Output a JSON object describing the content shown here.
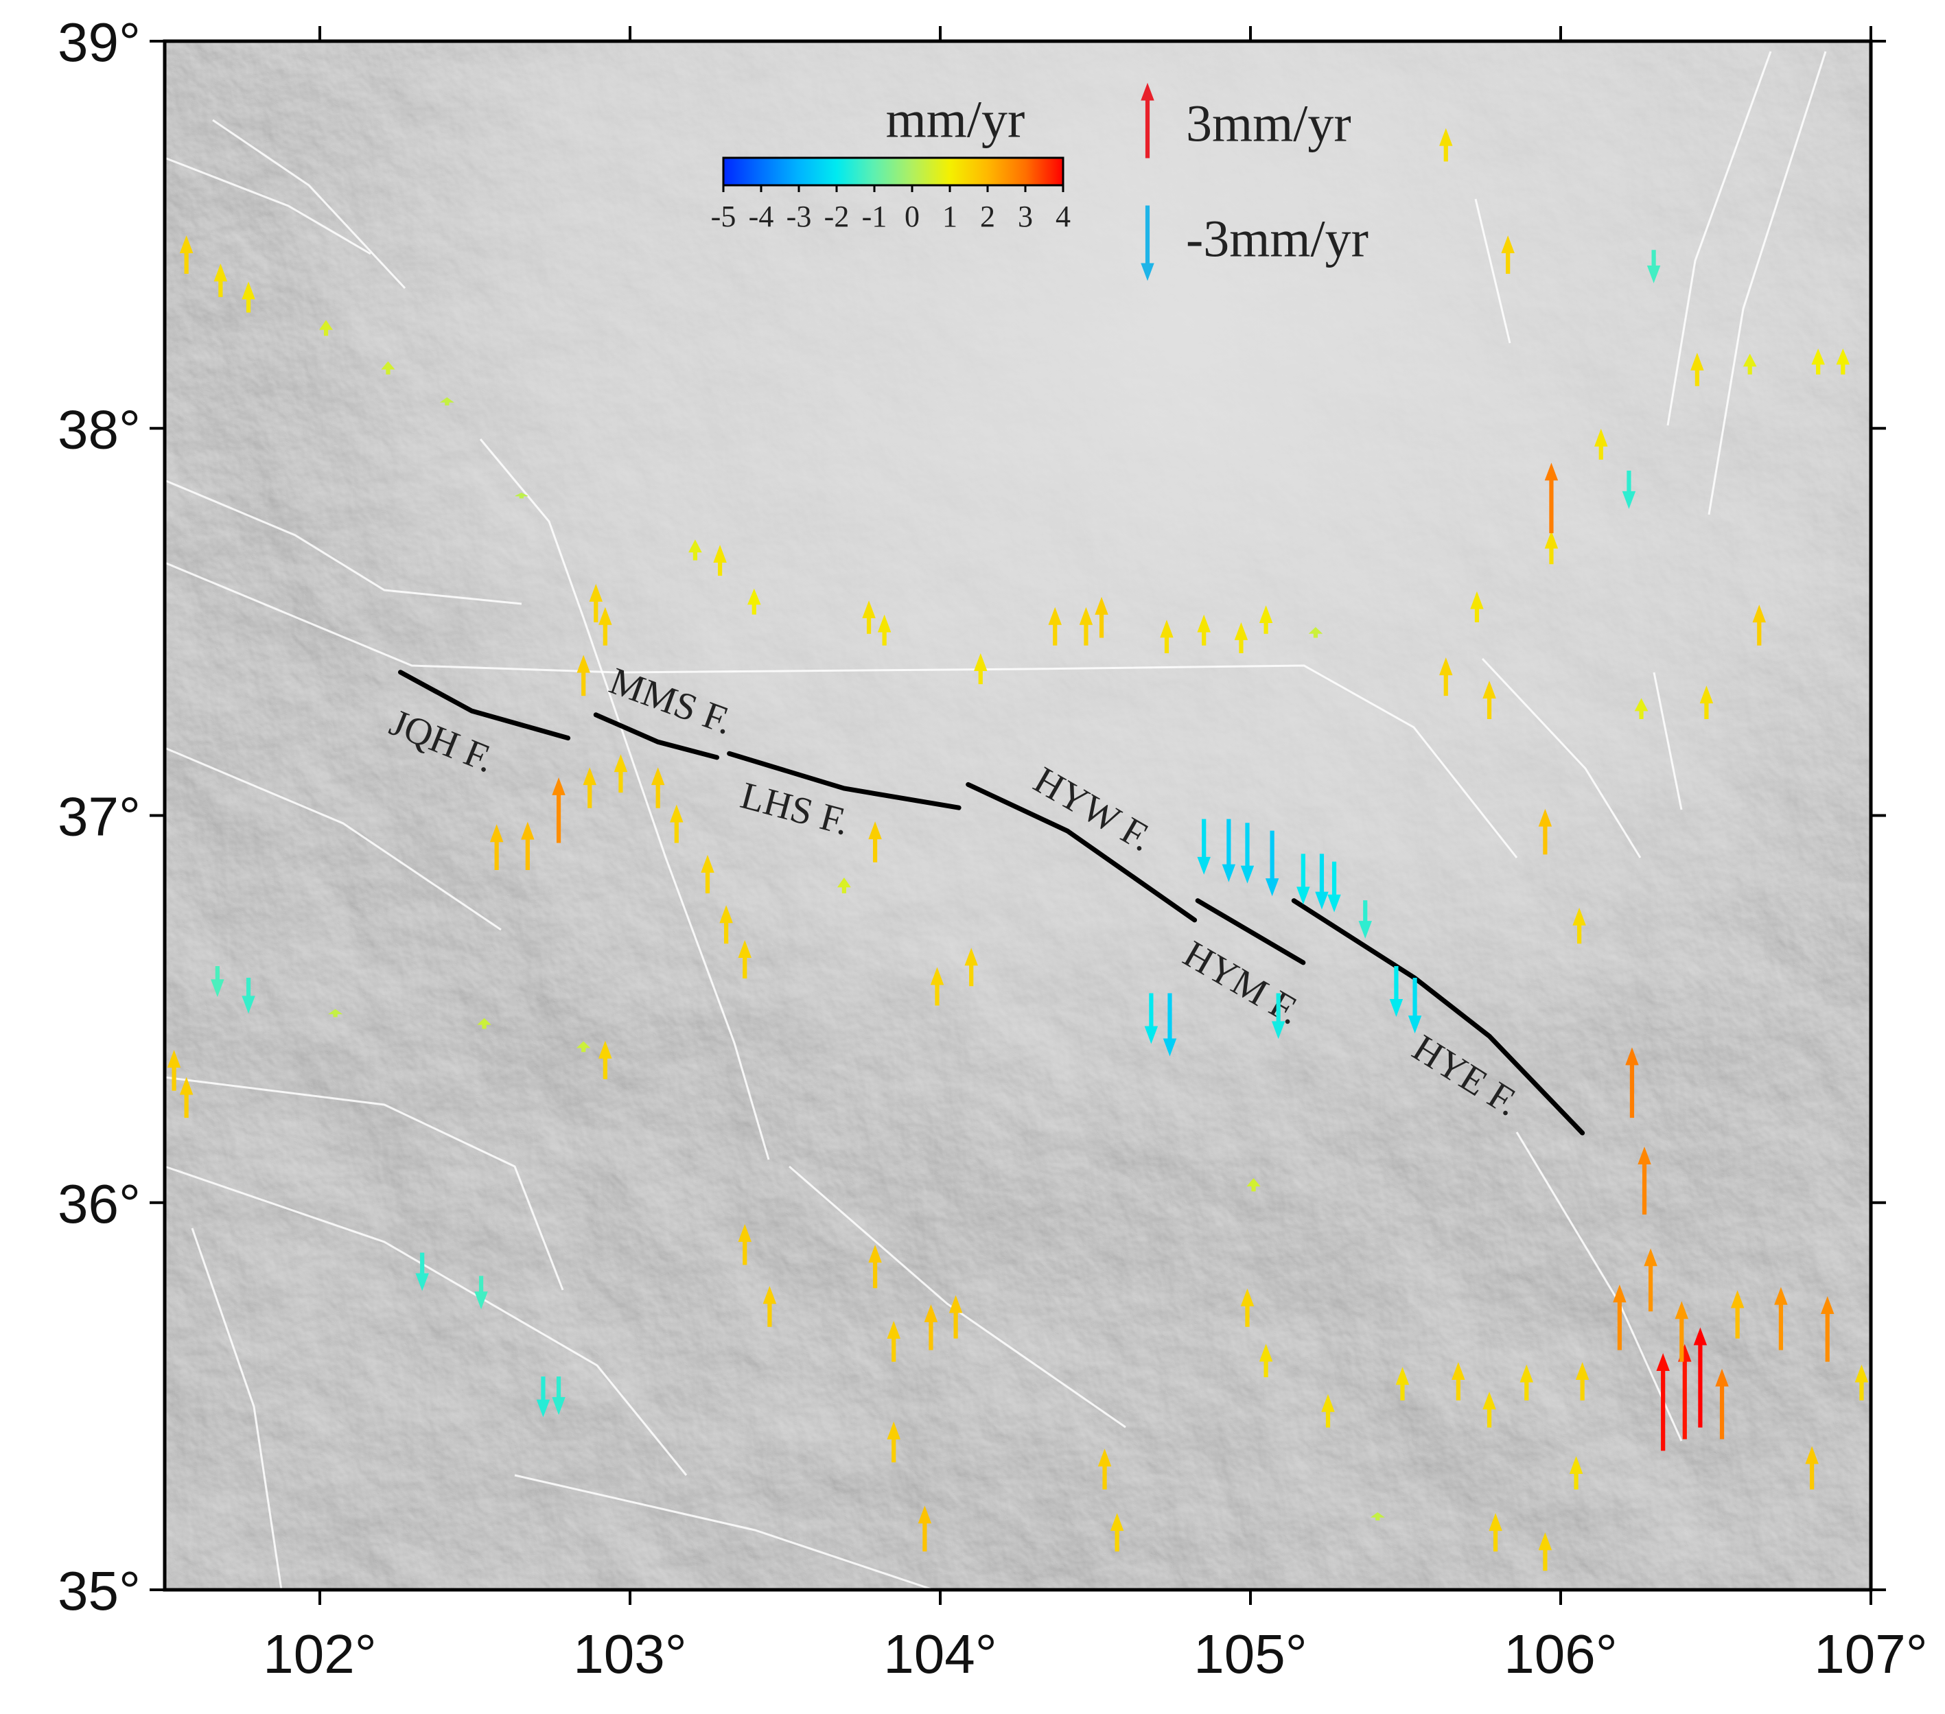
{
  "chart_data": {
    "type": "vector-map",
    "xlim": [
      101.5,
      107
    ],
    "ylim": [
      35,
      39
    ],
    "xticks": [
      {
        "value": 102,
        "label": "102°"
      },
      {
        "value": 103,
        "label": "103°"
      },
      {
        "value": 104,
        "label": "104°"
      },
      {
        "value": 105,
        "label": "105°"
      },
      {
        "value": 106,
        "label": "106°"
      },
      {
        "value": 107,
        "label": "107°"
      }
    ],
    "yticks": [
      {
        "value": 35,
        "label": "35°"
      },
      {
        "value": 36,
        "label": "36°"
      },
      {
        "value": 37,
        "label": "37°"
      },
      {
        "value": 38,
        "label": "38°"
      },
      {
        "value": 39,
        "label": "39°"
      }
    ],
    "colorbar": {
      "title": "mm/yr",
      "clim": [
        -5,
        4
      ],
      "ticks": [
        -5,
        -4,
        -3,
        -2,
        -1,
        0,
        1,
        2,
        3,
        4
      ],
      "colormap": [
        "#0028ff",
        "#0070ff",
        "#00b4ff",
        "#00eaf0",
        "#5ef0b0",
        "#b0f060",
        "#f4f000",
        "#ffb800",
        "#ff7000",
        "#ff0000"
      ]
    },
    "legend": [
      {
        "value": 3,
        "label": "3mm/yr",
        "color": "#e8202a"
      },
      {
        "value": -3,
        "label": "-3mm/yr",
        "color": "#1eb4e8"
      }
    ],
    "faults": [
      {
        "name": "JQH F.",
        "lon": [
          102.26,
          102.49,
          102.8
        ],
        "lat": [
          37.37,
          37.27,
          37.2
        ]
      },
      {
        "name": "MMS F.",
        "lon": [
          102.89,
          103.09,
          103.28
        ],
        "lat": [
          37.26,
          37.19,
          37.15
        ]
      },
      {
        "name": "LHS F.",
        "lon": [
          103.32,
          103.69,
          104.06
        ],
        "lat": [
          37.16,
          37.07,
          37.02
        ]
      },
      {
        "name": "HYW F.",
        "lon": [
          104.09,
          104.41,
          104.82
        ],
        "lat": [
          37.08,
          36.96,
          36.73
        ]
      },
      {
        "name": "HYM F.",
        "lon": [
          104.83,
          105.17
        ],
        "lat": [
          36.78,
          36.62
        ]
      },
      {
        "name": "HYE F.",
        "lon": [
          105.14,
          105.53,
          105.77,
          106.07
        ],
        "lat": [
          36.78,
          36.58,
          36.43,
          36.18
        ]
      }
    ],
    "vectors": {
      "lon": [
        101.57,
        101.68,
        101.77,
        102.02,
        102.22,
        102.41,
        102.65,
        102.89,
        102.92,
        102.85,
        103.21,
        103.29,
        103.4,
        103.77,
        103.82,
        104.13,
        104.37,
        104.47,
        104.52,
        104.73,
        104.85,
        104.97,
        105.05,
        105.21,
        105.63,
        105.73,
        105.77,
        105.97,
        105.97,
        106.13,
        106.22,
        106.3,
        106.44,
        106.61,
        106.83,
        106.91,
        105.83,
        105.63,
        106.47,
        106.64,
        105.95,
        106.06,
        106.26,
        102.57,
        102.67,
        102.77,
        102.87,
        102.97,
        103.09,
        103.15,
        103.25,
        103.31,
        103.37,
        103.79,
        103.69,
        103.99,
        104.1,
        104.85,
        104.93,
        104.99,
        105.07,
        105.17,
        105.23,
        105.27,
        105.37,
        105.47,
        105.53,
        104.68,
        104.74,
        105.09,
        101.77,
        101.67,
        102.33,
        102.52,
        102.72,
        102.77,
        106.33,
        106.4,
        106.45,
        106.23,
        106.27,
        106.19,
        106.29,
        106.39,
        106.52,
        106.71,
        106.86,
        106.57,
        103.37,
        103.45,
        103.79,
        103.85,
        103.97,
        104.05,
        103.85,
        103.95,
        104.53,
        104.57,
        104.99,
        105.05,
        105.25,
        105.49,
        105.67,
        105.77,
        105.89,
        106.07,
        105.95,
        105.79,
        106.05,
        106.81,
        106.97,
        102.92,
        101.53,
        101.57,
        102.85,
        102.53,
        102.05,
        105.01,
        105.41
      ],
      "lat": [
        38.4,
        38.34,
        38.3,
        38.24,
        38.14,
        38.06,
        37.82,
        37.5,
        37.44,
        37.31,
        37.66,
        37.62,
        37.52,
        37.47,
        37.44,
        37.34,
        37.44,
        37.44,
        37.46,
        37.42,
        37.44,
        37.42,
        37.47,
        37.46,
        37.31,
        37.5,
        37.25,
        37.65,
        37.73,
        37.92,
        37.89,
        38.46,
        38.11,
        38.14,
        38.14,
        38.14,
        38.4,
        38.69,
        37.25,
        37.44,
        36.9,
        36.67,
        37.25,
        36.86,
        36.86,
        36.93,
        37.02,
        37.06,
        37.02,
        36.93,
        36.8,
        36.67,
        36.58,
        36.88,
        36.8,
        36.51,
        36.56,
        36.99,
        36.99,
        36.98,
        36.96,
        36.9,
        36.9,
        36.88,
        36.78,
        36.61,
        36.58,
        36.54,
        36.54,
        36.54,
        36.58,
        36.61,
        35.87,
        35.81,
        35.55,
        35.55,
        35.36,
        35.39,
        35.42,
        36.22,
        35.97,
        35.62,
        35.72,
        35.59,
        35.39,
        35.62,
        35.59,
        35.65,
        35.84,
        35.68,
        35.78,
        35.59,
        35.62,
        35.65,
        35.33,
        35.1,
        35.26,
        35.1,
        35.68,
        35.55,
        35.42,
        35.49,
        35.49,
        35.42,
        35.49,
        35.49,
        35.05,
        35.1,
        35.26,
        35.26,
        35.49,
        36.32,
        36.29,
        36.22,
        36.39,
        36.45,
        36.48,
        36.03,
        35.18
      ],
      "values": [
        1.5,
        1.3,
        1.2,
        0.6,
        0.5,
        0.3,
        0.2,
        1.5,
        1.5,
        1.6,
        0.8,
        1.2,
        1.0,
        1.3,
        1.2,
        1.2,
        1.5,
        1.5,
        1.6,
        1.3,
        1.2,
        1.2,
        1.1,
        0.4,
        1.5,
        1.2,
        1.5,
        1.3,
        2.8,
        1.2,
        -1.5,
        -1.3,
        1.3,
        0.8,
        1.0,
        1.0,
        1.5,
        1.3,
        1.3,
        1.6,
        1.8,
        1.4,
        0.8,
        1.8,
        1.9,
        2.6,
        1.6,
        1.5,
        1.6,
        1.5,
        1.5,
        1.5,
        1.5,
        1.6,
        0.6,
        1.5,
        1.5,
        -2.2,
        -2.5,
        -2.4,
        -2.6,
        -2.0,
        -2.2,
        -2.0,
        -1.5,
        -2.0,
        -2.2,
        -2.0,
        -2.5,
        -1.8,
        -1.4,
        -1.2,
        -1.5,
        -1.3,
        -1.6,
        -1.5,
        3.9,
        3.8,
        4.0,
        2.8,
        2.7,
        2.6,
        2.5,
        2.4,
        2.8,
        2.5,
        2.6,
        1.9,
        1.6,
        1.6,
        1.7,
        1.6,
        1.8,
        1.7,
        1.6,
        1.8,
        1.6,
        1.5,
        1.5,
        1.3,
        1.3,
        1.3,
        1.5,
        1.4,
        1.4,
        1.5,
        1.5,
        1.5,
        1.3,
        1.7,
        1.4,
        1.5,
        1.6,
        1.6,
        0.4,
        0.4,
        0.3,
        0.5,
        0.3
      ]
    }
  }
}
